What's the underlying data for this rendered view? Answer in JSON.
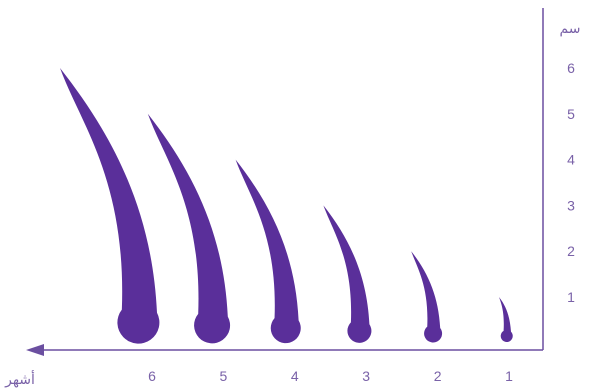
{
  "chart_data": {
    "type": "bar",
    "title": "",
    "xlabel": "أشهر",
    "ylabel": "سم",
    "categories": [
      "1",
      "2",
      "3",
      "4",
      "5",
      "6"
    ],
    "x_direction": "right-to-left",
    "ytick_labels": [
      "1",
      "2",
      "3",
      "4",
      "5",
      "6"
    ],
    "ylim": [
      0,
      6.7
    ],
    "series": [
      {
        "values": [
          1,
          2,
          3,
          4,
          5,
          6
        ]
      }
    ],
    "grid": false,
    "legend": "none",
    "colors": {
      "bar_fill": "#5a2f9a",
      "axis": "#6b4fa0",
      "text": "#7a62a8"
    }
  }
}
